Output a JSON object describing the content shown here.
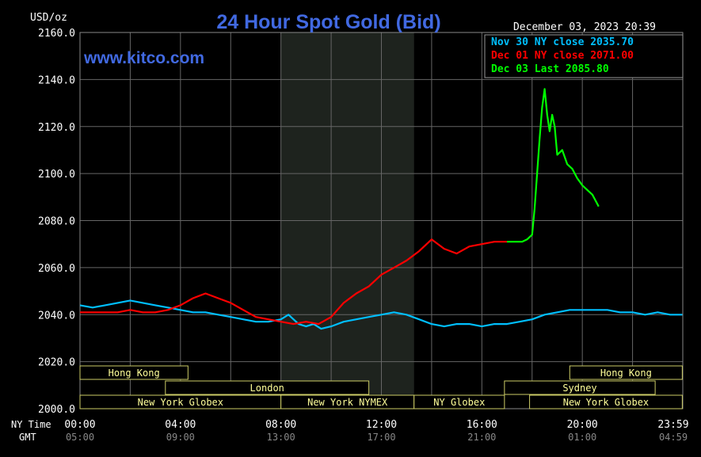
{
  "header": {
    "unit": "USD/oz",
    "title": "24 Hour Spot Gold (Bid)",
    "timestamp": "December 03, 2023 20:39",
    "watermark": "www.kitco.com"
  },
  "legend": [
    {
      "text": "Nov 30 NY close 2035.70",
      "color": "#00bfff"
    },
    {
      "text": "Dec 01 NY close 2071.00",
      "color": "#ff0000"
    },
    {
      "text": "Dec 03 Last 2085.80",
      "color": "#00ff00"
    }
  ],
  "axes": {
    "y_ticks": [
      "2160.0",
      "2140.0",
      "2120.0",
      "2100.0",
      "2080.0",
      "2060.0",
      "2040.0",
      "2020.0",
      "2000.0"
    ],
    "ny_label": "NY Time",
    "gmt_label": "GMT",
    "ny_ticks": [
      "00:00",
      "04:00",
      "08:00",
      "12:00",
      "16:00",
      "20:00",
      "23:59"
    ],
    "gmt_ticks": [
      "05:00",
      "09:00",
      "13:00",
      "17:00",
      "21:00",
      "01:00",
      "04:59"
    ]
  },
  "sessions": [
    {
      "label": "Hong Kong",
      "start": 0,
      "end": 4.3,
      "row": 0
    },
    {
      "label": "Hong Kong",
      "start": 19.5,
      "end": 23.98,
      "row": 0
    },
    {
      "label": "London",
      "start": 3.4,
      "end": 11.5,
      "row": 1
    },
    {
      "label": "Sydney",
      "start": 16.9,
      "end": 22.9,
      "row": 1
    },
    {
      "label": "New York Globex",
      "start": 0,
      "end": 8.0,
      "row": 2
    },
    {
      "label": "New York NYMEX",
      "start": 8.0,
      "end": 13.3,
      "row": 2
    },
    {
      "label": "NY Globex",
      "start": 13.3,
      "end": 16.9,
      "row": 2
    },
    {
      "label": "New York Globex",
      "start": 17.9,
      "end": 23.98,
      "row": 2
    }
  ],
  "colors": {
    "nov30": "#00bfff",
    "dec01": "#ff0000",
    "dec03": "#00ff00",
    "title": "#4169e1",
    "session": "#ffff99",
    "session_border": "#cccc66",
    "grid": "#666666",
    "shade": "#1e231e"
  },
  "chart_data": {
    "type": "line",
    "title": "24 Hour Spot Gold (Bid)",
    "ylabel": "USD/oz",
    "xlim": [
      0,
      24
    ],
    "ylim": [
      2000,
      2160
    ],
    "shaded_region": [
      8.0,
      13.3
    ],
    "series": [
      {
        "name": "Nov 30 NY close 2035.70",
        "x": [
          0,
          0.5,
          1,
          1.5,
          2,
          2.5,
          3,
          3.5,
          4,
          4.5,
          5,
          5.5,
          6,
          6.5,
          7,
          7.5,
          8,
          8.3,
          8.7,
          9,
          9.3,
          9.6,
          10,
          10.5,
          11,
          11.5,
          12,
          12.5,
          13,
          13.5,
          14,
          14.5,
          15,
          15.5,
          16,
          16.5,
          17,
          17.5,
          18,
          18.5,
          19,
          19.5,
          20,
          20.5,
          21,
          21.5,
          22,
          22.5,
          23,
          23.5,
          23.98
        ],
        "y": [
          2044,
          2043,
          2044,
          2045,
          2046,
          2045,
          2044,
          2043,
          2042,
          2041,
          2041,
          2040,
          2039,
          2038,
          2037,
          2037,
          2038,
          2040,
          2036,
          2035,
          2036,
          2034,
          2035,
          2037,
          2038,
          2039,
          2040,
          2041,
          2040,
          2038,
          2036,
          2035,
          2036,
          2036,
          2035,
          2036,
          2036,
          2037,
          2038,
          2040,
          2041,
          2042,
          2042,
          2042,
          2042,
          2041,
          2041,
          2040,
          2041,
          2040,
          2040
        ]
      },
      {
        "name": "Dec 01 NY close 2071.00",
        "x": [
          0,
          0.5,
          1,
          1.5,
          2,
          2.5,
          3,
          3.5,
          4,
          4.5,
          5,
          5.5,
          6,
          6.5,
          7,
          7.5,
          8,
          8.5,
          9,
          9.5,
          10,
          10.5,
          11,
          11.5,
          12,
          12.5,
          13,
          13.5,
          14,
          14.5,
          15,
          15.5,
          16,
          16.5,
          17
        ],
        "y": [
          2041,
          2041,
          2041,
          2041,
          2042,
          2041,
          2041,
          2042,
          2044,
          2047,
          2049,
          2047,
          2045,
          2042,
          2039,
          2038,
          2037,
          2036,
          2037,
          2036,
          2039,
          2045,
          2049,
          2052,
          2057,
          2060,
          2063,
          2067,
          2072,
          2068,
          2066,
          2069,
          2070,
          2071,
          2071
        ]
      },
      {
        "name": "Dec 03 Last 2085.80",
        "x": [
          17,
          17.4,
          17.6,
          17.8,
          18.0,
          18.1,
          18.2,
          18.3,
          18.4,
          18.5,
          18.6,
          18.7,
          18.8,
          18.9,
          19.0,
          19.2,
          19.4,
          19.6,
          19.8,
          20.0,
          20.2,
          20.4,
          20.65
        ],
        "y": [
          2071,
          2071,
          2071,
          2072,
          2074,
          2085,
          2100,
          2115,
          2128,
          2136,
          2125,
          2118,
          2125,
          2120,
          2108,
          2110,
          2104,
          2102,
          2098,
          2095,
          2093,
          2091,
          2086
        ]
      }
    ]
  }
}
